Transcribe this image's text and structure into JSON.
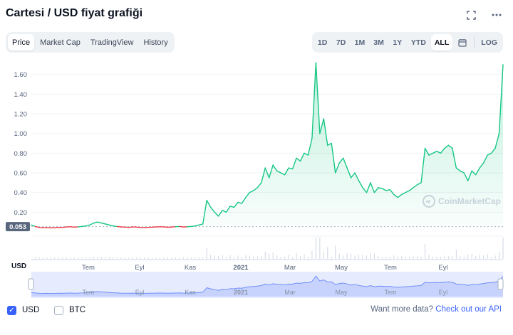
{
  "header": {
    "title": "Cartesi / USD fiyat grafiği"
  },
  "tabs": [
    "Price",
    "Market Cap",
    "TradingView",
    "History"
  ],
  "active_tab": "Price",
  "ranges": [
    "1D",
    "7D",
    "1M",
    "3M",
    "1Y",
    "YTD",
    "ALL"
  ],
  "active_range": "ALL",
  "log_label": "LOG",
  "icons": {
    "fullscreen": "fullscreen-icon",
    "more": "more-icon",
    "calendar": "calendar-icon"
  },
  "colors": {
    "up": "#16c784",
    "down": "#ea3943",
    "accent": "#3861fb",
    "grid": "#eff2f5",
    "axis_text": "#58667e"
  },
  "watermark": "CoinMarketCap",
  "currency_axis_label": "USD",
  "bottom": {
    "usd_label": "USD",
    "btc_label": "BTC",
    "usd_checked": true,
    "btc_checked": false,
    "more_data_text": "Want more data?",
    "more_data_link": "Check out our API"
  },
  "chart_data": {
    "type": "line",
    "y_ticks": [
      "1.60",
      "1.40",
      "1.20",
      "1.00",
      "0.80",
      "0.60",
      "0.40",
      "0.20"
    ],
    "ylim": [
      0,
      1.75
    ],
    "x_tick_labels": [
      "Tem",
      "Eyl",
      "Kas",
      "2021",
      "Mar",
      "May",
      "Tem",
      "Eyl"
    ],
    "navigator_tick_labels": [
      "Tem",
      "Eyl",
      "Kas",
      "2021",
      "Mar",
      "May",
      "Tem",
      "Eyl"
    ],
    "baseline_value": 0.053,
    "baseline_label": "0.053",
    "grid": true,
    "legend": "none",
    "series": [
      {
        "values": [
          0.07,
          0.055,
          0.045,
          0.042,
          0.044,
          0.04,
          0.043,
          0.046,
          0.045,
          0.05,
          0.052,
          0.048,
          0.05,
          0.056,
          0.06,
          0.07,
          0.09,
          0.1,
          0.09,
          0.08,
          0.07,
          0.06,
          0.055,
          0.05,
          0.048,
          0.046,
          0.05,
          0.048,
          0.045,
          0.043,
          0.046,
          0.048,
          0.05,
          0.052,
          0.05,
          0.047,
          0.049,
          0.053,
          0.055,
          0.05,
          0.052,
          0.055,
          0.06,
          0.07,
          0.08,
          0.32,
          0.25,
          0.2,
          0.16,
          0.22,
          0.2,
          0.26,
          0.25,
          0.3,
          0.29,
          0.35,
          0.4,
          0.42,
          0.45,
          0.5,
          0.65,
          0.55,
          0.68,
          0.62,
          0.6,
          0.58,
          0.65,
          0.64,
          0.75,
          0.72,
          0.8,
          0.78,
          0.95,
          1.72,
          1.0,
          1.15,
          0.88,
          0.9,
          0.6,
          0.7,
          0.75,
          0.65,
          0.55,
          0.6,
          0.52,
          0.45,
          0.4,
          0.5,
          0.4,
          0.45,
          0.44,
          0.42,
          0.43,
          0.38,
          0.35,
          0.38,
          0.4,
          0.42,
          0.45,
          0.48,
          0.5,
          0.85,
          0.78,
          0.8,
          0.82,
          0.8,
          0.85,
          0.88,
          0.85,
          0.65,
          0.62,
          0.6,
          0.52,
          0.62,
          0.58,
          0.65,
          0.7,
          0.78,
          0.8,
          0.85,
          1.0,
          1.7
        ]
      }
    ]
  }
}
